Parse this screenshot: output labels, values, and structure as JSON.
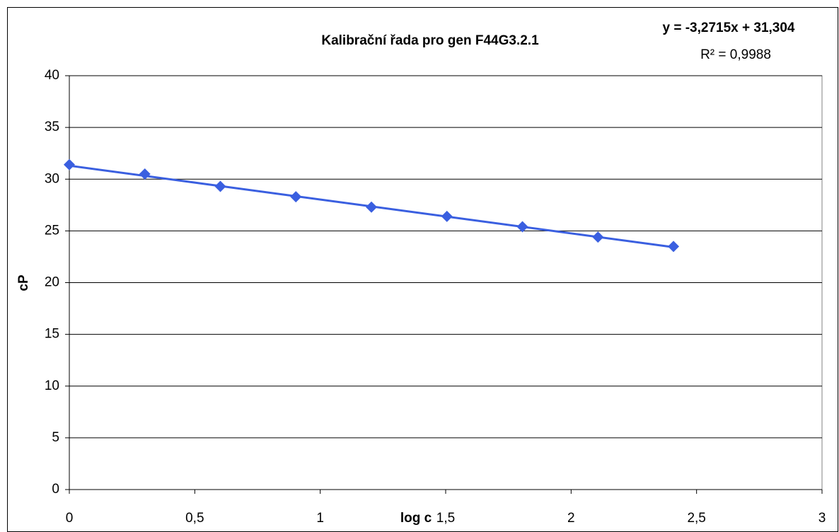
{
  "chart_data": {
    "type": "scatter",
    "title": "Kalibrační řada pro gen F44G3.2.1",
    "xlabel": "log c",
    "ylabel": "cP",
    "x": [
      0,
      0.301,
      0.602,
      0.903,
      1.204,
      1.505,
      1.806,
      2.107,
      2.408
    ],
    "series": [
      {
        "name": "cP",
        "color": "#3a5fe0",
        "values": [
          31.4,
          30.5,
          29.3,
          28.3,
          27.3,
          26.4,
          25.4,
          24.4,
          23.5
        ]
      }
    ],
    "trendline": {
      "slope": -3.2715,
      "intercept": 31.304,
      "equation": "y = -3,2715x + 31,304",
      "r2": "R² = 0,9988"
    },
    "xlim": [
      0,
      3
    ],
    "ylim": [
      0,
      40
    ],
    "xticks": [
      0,
      {
        "value": 0.5,
        "label": "0,5"
      },
      1,
      {
        "value": 1.5,
        "label": "1,5"
      },
      2,
      {
        "value": 2.5,
        "label": "2,5"
      },
      3
    ],
    "yticks": [
      0,
      5,
      10,
      15,
      20,
      25,
      30,
      35,
      40
    ],
    "grid": true
  }
}
